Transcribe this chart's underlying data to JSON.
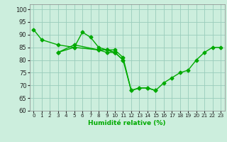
{
  "title": "",
  "xlabel": "Humidité relative (%)",
  "ylabel": "",
  "bg_color": "#cceedd",
  "grid_color": "#99ccbb",
  "line_color": "#00aa00",
  "marker": "D",
  "markersize": 2.5,
  "linewidth": 1.0,
  "xlim": [
    -0.5,
    23.5
  ],
  "ylim": [
    60,
    102
  ],
  "yticks": [
    60,
    65,
    70,
    75,
    80,
    85,
    90,
    95,
    100
  ],
  "xticks": [
    0,
    1,
    2,
    3,
    4,
    5,
    6,
    7,
    8,
    9,
    10,
    11,
    12,
    13,
    14,
    15,
    16,
    17,
    18,
    19,
    20,
    21,
    22,
    23
  ],
  "series": [
    [
      92,
      88,
      null,
      86,
      null,
      85,
      91,
      89,
      85,
      84,
      84,
      81,
      68,
      69,
      69,
      68,
      null,
      null,
      null,
      null,
      null,
      null,
      null,
      null
    ],
    [
      null,
      null,
      null,
      83,
      null,
      86,
      null,
      null,
      84,
      84,
      83,
      80,
      null,
      null,
      null,
      null,
      null,
      null,
      null,
      null,
      null,
      null,
      null,
      null
    ],
    [
      null,
      null,
      null,
      83,
      null,
      85,
      null,
      null,
      84,
      83,
      83,
      null,
      null,
      null,
      null,
      null,
      null,
      null,
      null,
      null,
      null,
      null,
      null,
      null
    ],
    [
      null,
      null,
      null,
      null,
      null,
      null,
      null,
      null,
      84,
      84,
      83,
      null,
      null,
      null,
      null,
      null,
      null,
      null,
      null,
      null,
      null,
      null,
      null,
      null
    ],
    [
      null,
      null,
      null,
      null,
      null,
      null,
      null,
      null,
      null,
      null,
      83,
      80,
      68,
      69,
      69,
      68,
      71,
      73,
      75,
      76,
      80,
      83,
      85,
      85
    ]
  ]
}
